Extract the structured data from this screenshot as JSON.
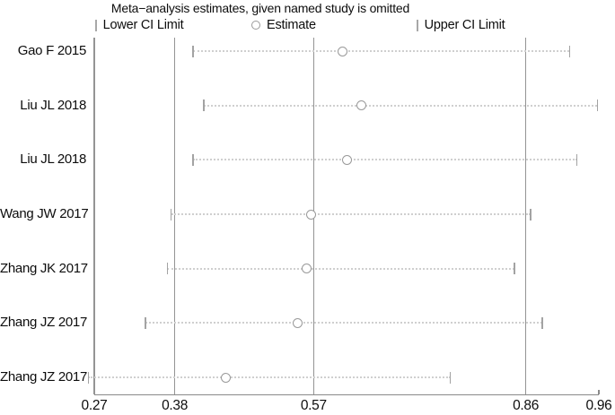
{
  "title": "Meta−analysis estimates, given named study is omitted",
  "legend": {
    "lower_label": "Lower CI Limit",
    "estimate_label": "Estimate",
    "upper_label": "Upper CI Limit"
  },
  "colors": {
    "reference_line": "#949494",
    "axis_line": "#8a8a8a",
    "ci_dots": "#cfcfcf",
    "ci_tick": "#a3a3a3",
    "estimate_circle": "#999999",
    "text": "#0d0d0d"
  },
  "chart_data": {
    "type": "scatter",
    "subtype": "leave-one-out-sensitivity-forest",
    "title": "Meta−analysis estimates, given named study is omitted",
    "xlabel": "",
    "ylabel": "",
    "xlim": [
      0.27,
      0.96
    ],
    "x_scale": "linear",
    "grid": false,
    "legend_position": "top",
    "x_ticks": [
      0.27,
      0.38,
      0.57,
      0.86,
      0.96
    ],
    "x_tick_labels": [
      "0.27",
      "0.38",
      "0.57",
      "0.86",
      "0.96"
    ],
    "reference_lines": {
      "lower_ci": 0.38,
      "estimate": 0.57,
      "upper_ci": 0.86
    },
    "studies": [
      {
        "label": "Gao F 2015",
        "lower": 0.405,
        "estimate": 0.61,
        "upper": 0.92
      },
      {
        "label": "Liu JL 2018",
        "lower": 0.42,
        "estimate": 0.635,
        "upper": 0.958
      },
      {
        "label": "Liu JL 2018",
        "lower": 0.405,
        "estimate": 0.615,
        "upper": 0.93
      },
      {
        "label": "Wang JW 2017",
        "lower": 0.375,
        "estimate": 0.567,
        "upper": 0.867
      },
      {
        "label": "Zhang JK 2017",
        "lower": 0.37,
        "estimate": 0.56,
        "upper": 0.845
      },
      {
        "label": "Zhang JZ 2017",
        "lower": 0.34,
        "estimate": 0.548,
        "upper": 0.883
      },
      {
        "label": "Zhang JZ 2017",
        "lower": 0.262,
        "estimate": 0.45,
        "upper": 0.757
      }
    ]
  }
}
